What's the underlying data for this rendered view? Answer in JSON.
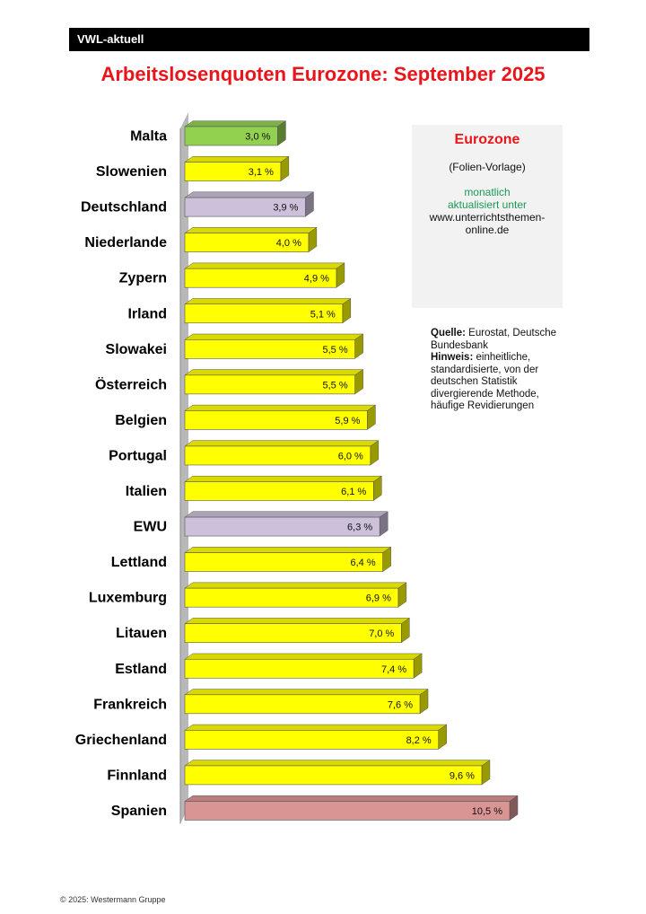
{
  "header": {
    "label": "VWL-aktuell"
  },
  "chart_data": {
    "type": "bar",
    "orientation": "horizontal",
    "title": "Arbeitslosenquoten Eurozone: September 2025",
    "categories": [
      "Malta",
      "Slowenien",
      "Deutschland",
      "Niederlande",
      "Zypern",
      "Irland",
      "Slowakei",
      "Österreich",
      "Belgien",
      "Portugal",
      "Italien",
      "EWU",
      "Lettland",
      "Luxemburg",
      "Litauen",
      "Estland",
      "Frankreich",
      "Griechenland",
      "Finnland",
      "Spanien"
    ],
    "values": [
      3.0,
      3.1,
      3.9,
      4.0,
      4.9,
      5.1,
      5.5,
      5.5,
      5.9,
      6.0,
      6.1,
      6.3,
      6.4,
      6.9,
      7.0,
      7.4,
      7.6,
      8.2,
      9.6,
      10.5
    ],
    "value_labels": [
      "3,0 %",
      "3,1 %",
      "3,9 %",
      "4,0 %",
      "4,9 %",
      "5,1 %",
      "5,5 %",
      "5,5 %",
      "5,9 %",
      "6,0 %",
      "6,1 %",
      "6,3 %",
      "6,4 %",
      "6,9 %",
      "7,0 %",
      "7,4 %",
      "7,6 %",
      "8,2 %",
      "9,6 %",
      "10,5 %"
    ],
    "colors": {
      "default": "#ffff00",
      "Malta": "#92d050",
      "Deutschland": "#ccc0da",
      "EWU": "#ccc0da",
      "Spanien": "#d99594"
    },
    "xlim": [
      0,
      10.5
    ],
    "grid": false,
    "legend": false
  },
  "info_box": {
    "title": "Eurozone",
    "subtitle": "(Folien-Vorlage)",
    "update_line1": "monatlich",
    "update_line2": "aktualisiert unter",
    "url_line1": "www.unterrichtsthemen-",
    "url_line2": "online.de"
  },
  "source_note": {
    "source_label": "Quelle:",
    "source_text": " Eurostat, Deutsche Bundesbank",
    "hint_label": "Hinweis:",
    "hint_text": " einheitliche, standardisierte, von der deutschen Statistik divergierende Methode, häufige Revidierungen"
  },
  "footer": {
    "copyright": "© 2025: Westermann Gruppe"
  }
}
